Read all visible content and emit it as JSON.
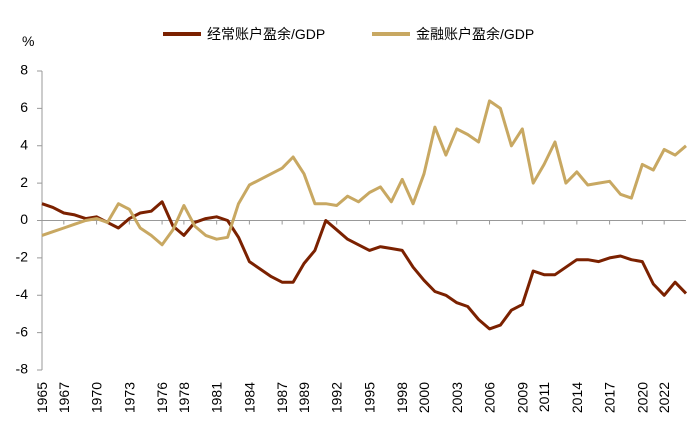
{
  "chart_data": {
    "type": "line",
    "y_label": "%",
    "x": [
      1965,
      1966,
      1967,
      1968,
      1969,
      1970,
      1971,
      1972,
      1973,
      1974,
      1975,
      1976,
      1977,
      1978,
      1979,
      1980,
      1981,
      1982,
      1983,
      1984,
      1985,
      1986,
      1987,
      1988,
      1989,
      1990,
      1991,
      1992,
      1993,
      1994,
      1995,
      1996,
      1997,
      1998,
      1999,
      2000,
      2001,
      2002,
      2003,
      2004,
      2005,
      2006,
      2007,
      2008,
      2009,
      2010,
      2011,
      2012,
      2013,
      2014,
      2015,
      2016,
      2017,
      2018,
      2019,
      2020,
      2021,
      2022,
      2023,
      2024
    ],
    "series": [
      {
        "name": "经常账户盈余/GDP",
        "color": "#7b2100",
        "values": [
          0.9,
          0.7,
          0.4,
          0.3,
          0.1,
          0.2,
          -0.1,
          -0.4,
          0.1,
          0.4,
          0.5,
          1.0,
          -0.3,
          -0.8,
          -0.1,
          0.1,
          0.2,
          0.0,
          -0.9,
          -2.2,
          -2.6,
          -3.0,
          -3.3,
          -3.3,
          -2.3,
          -1.6,
          0.0,
          -0.5,
          -1.0,
          -1.3,
          -1.6,
          -1.4,
          -1.5,
          -1.6,
          -2.5,
          -3.2,
          -3.8,
          -4.0,
          -4.4,
          -4.6,
          -5.3,
          -5.8,
          -5.6,
          -4.8,
          -4.5,
          -2.7,
          -2.9,
          -2.9,
          -2.5,
          -2.1,
          -2.1,
          -2.2,
          -2.0,
          -1.9,
          -2.1,
          -2.2,
          -3.4,
          -4.0,
          -3.3,
          -3.9
        ]
      },
      {
        "name": "金融账户盈余/GDP",
        "color": "#c8a862",
        "values": [
          -0.8,
          -0.6,
          -0.4,
          -0.2,
          0.0,
          0.1,
          -0.1,
          0.9,
          0.6,
          -0.4,
          -0.8,
          -1.3,
          -0.5,
          0.8,
          -0.3,
          -0.8,
          -1.0,
          -0.9,
          0.9,
          1.9,
          2.2,
          2.5,
          2.8,
          3.4,
          2.5,
          0.9,
          0.9,
          0.8,
          1.3,
          1.0,
          1.5,
          1.8,
          1.0,
          2.2,
          0.9,
          2.5,
          5.0,
          3.5,
          4.9,
          4.6,
          4.2,
          6.4,
          6.0,
          4.0,
          4.9,
          2.0,
          3.0,
          4.2,
          2.0,
          2.6,
          1.9,
          2.0,
          2.1,
          1.4,
          1.2,
          3.0,
          2.7,
          3.8,
          3.5,
          4.0
        ]
      }
    ],
    "xlim": [
      1965,
      2024
    ],
    "xticks": [
      1965,
      1967,
      1970,
      1973,
      1976,
      1978,
      1981,
      1984,
      1987,
      1989,
      1992,
      1995,
      1998,
      2000,
      2003,
      2006,
      2009,
      2011,
      2014,
      2017,
      2020,
      2022
    ],
    "ylim": [
      -8,
      8
    ],
    "yticks": [
      -8,
      -6,
      -4,
      -2,
      0,
      2,
      4,
      6,
      8
    ],
    "legend": "top"
  }
}
